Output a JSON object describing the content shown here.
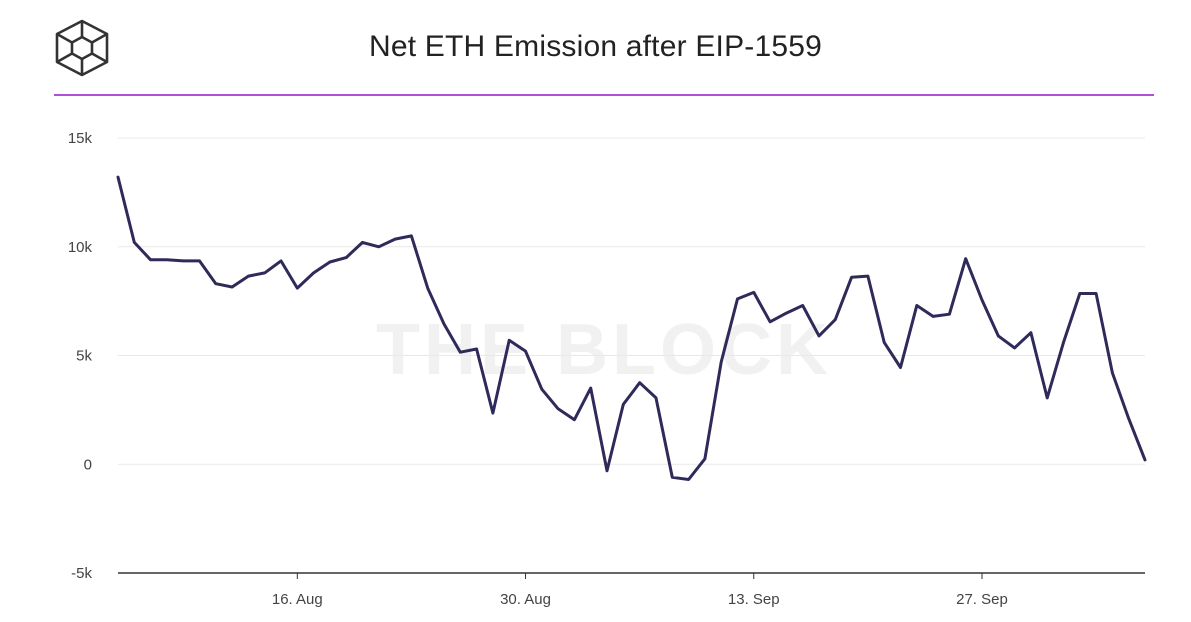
{
  "header": {
    "title": "Net ETH Emission after EIP-1559",
    "logo_icon": "cube-logo-icon",
    "accent_color": "#b24fd8"
  },
  "watermark": "THE BLOCK",
  "colors": {
    "line": "#2e2a5a",
    "grid": "#e9e9e9",
    "axis": "#333333"
  },
  "chart_data": {
    "type": "line",
    "title": "Net ETH Emission after EIP-1559",
    "xlabel": "",
    "ylabel": "",
    "ylim": [
      -5000,
      15000
    ],
    "yticks": [
      15000,
      10000,
      5000,
      0,
      -5000
    ],
    "ytick_labels": [
      "15k",
      "10k",
      "5k",
      "0",
      "-5k"
    ],
    "xlim": [
      "2021-08-05",
      "2021-10-07"
    ],
    "xtick_dates": [
      "2021-08-16",
      "2021-08-30",
      "2021-09-13",
      "2021-09-27"
    ],
    "xtick_labels": [
      "16. Aug",
      "30. Aug",
      "13. Sep",
      "27. Sep"
    ],
    "grid": true,
    "legend": "none",
    "series": [
      {
        "x": [
          "2021-08-05",
          "2021-08-06",
          "2021-08-07",
          "2021-08-08",
          "2021-08-09",
          "2021-08-10",
          "2021-08-11",
          "2021-08-12",
          "2021-08-13",
          "2021-08-14",
          "2021-08-15",
          "2021-08-16",
          "2021-08-17",
          "2021-08-18",
          "2021-08-19",
          "2021-08-20",
          "2021-08-21",
          "2021-08-22",
          "2021-08-23",
          "2021-08-24",
          "2021-08-25",
          "2021-08-26",
          "2021-08-27",
          "2021-08-28",
          "2021-08-29",
          "2021-08-30",
          "2021-08-31",
          "2021-09-01",
          "2021-09-02",
          "2021-09-03",
          "2021-09-04",
          "2021-09-05",
          "2021-09-06",
          "2021-09-07",
          "2021-09-08",
          "2021-09-09",
          "2021-09-10",
          "2021-09-11",
          "2021-09-12",
          "2021-09-13",
          "2021-09-14",
          "2021-09-15",
          "2021-09-16",
          "2021-09-17",
          "2021-09-18",
          "2021-09-19",
          "2021-09-20",
          "2021-09-21",
          "2021-09-22",
          "2021-09-23",
          "2021-09-24",
          "2021-09-25",
          "2021-09-26",
          "2021-09-27",
          "2021-09-28",
          "2021-09-29",
          "2021-09-30",
          "2021-10-01",
          "2021-10-02",
          "2021-10-03",
          "2021-10-04",
          "2021-10-05",
          "2021-10-06",
          "2021-10-07"
        ],
        "y": [
          13200,
          10200,
          9400,
          9400,
          9350,
          9350,
          8300,
          8150,
          8650,
          8800,
          9350,
          8100,
          8800,
          9300,
          9500,
          10200,
          10000,
          10350,
          10500,
          8100,
          6450,
          5150,
          5300,
          2350,
          5700,
          5200,
          3450,
          2550,
          2050,
          3500,
          -300,
          2750,
          3750,
          3050,
          -600,
          -700,
          250,
          4700,
          7600,
          7900,
          6550,
          6950,
          7300,
          5900,
          6650,
          8600,
          8650,
          5600,
          4450,
          7300,
          6800,
          6900,
          9450,
          7550,
          5900,
          5350,
          6050,
          3050,
          5600,
          7850,
          7850,
          4200,
          2100,
          200
        ]
      }
    ]
  }
}
